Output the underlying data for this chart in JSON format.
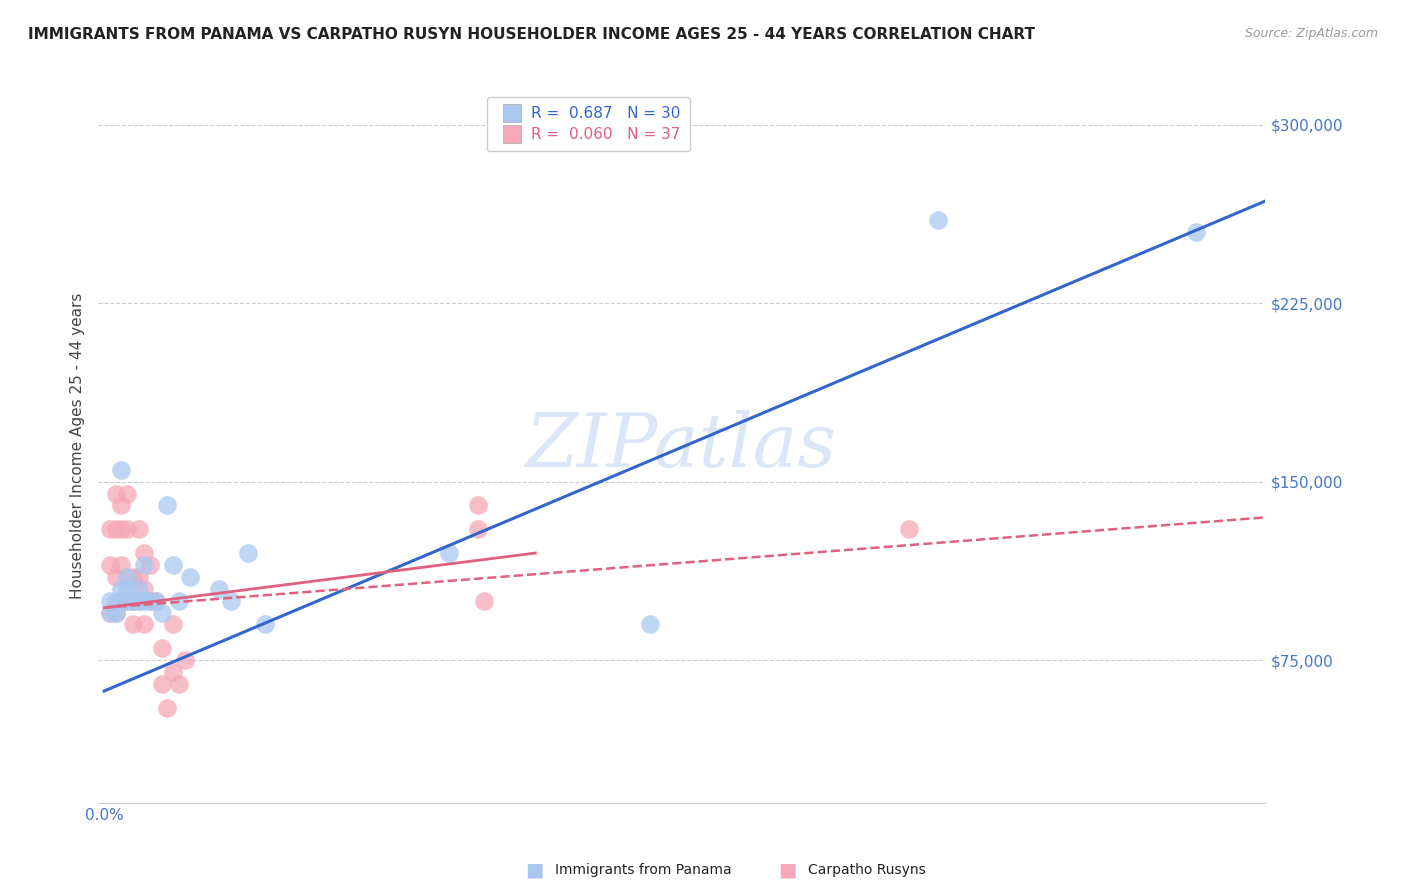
{
  "title": "IMMIGRANTS FROM PANAMA VS CARPATHO RUSYN HOUSEHOLDER INCOME AGES 25 - 44 YEARS CORRELATION CHART",
  "source": "Source: ZipAtlas.com",
  "ylabel": "Householder Income Ages 25 - 44 years",
  "xmin": -0.001,
  "xmax": 0.202,
  "ymin": 15000,
  "ymax": 315000,
  "blue_R": 0.687,
  "blue_N": 30,
  "pink_R": 0.06,
  "pink_N": 37,
  "blue_color": "#a8c8f0",
  "pink_color": "#f5a8b8",
  "blue_line_color": "#3366cc",
  "pink_line_color": "#e06080",
  "blue_scatter_x": [
    0.001,
    0.001,
    0.002,
    0.002,
    0.003,
    0.003,
    0.004,
    0.004,
    0.004,
    0.005,
    0.005,
    0.006,
    0.006,
    0.007,
    0.007,
    0.008,
    0.009,
    0.01,
    0.011,
    0.012,
    0.013,
    0.015,
    0.02,
    0.022,
    0.025,
    0.028,
    0.06,
    0.095,
    0.145,
    0.19
  ],
  "blue_scatter_y": [
    100000,
    95000,
    100000,
    95000,
    105000,
    155000,
    110000,
    105000,
    100000,
    100000,
    100000,
    105000,
    100000,
    115000,
    100000,
    100000,
    100000,
    95000,
    140000,
    115000,
    100000,
    110000,
    105000,
    100000,
    120000,
    90000,
    120000,
    90000,
    260000,
    255000
  ],
  "pink_scatter_x": [
    0.001,
    0.001,
    0.001,
    0.002,
    0.002,
    0.002,
    0.002,
    0.003,
    0.003,
    0.003,
    0.003,
    0.004,
    0.004,
    0.004,
    0.005,
    0.005,
    0.005,
    0.006,
    0.006,
    0.006,
    0.007,
    0.007,
    0.007,
    0.008,
    0.008,
    0.009,
    0.01,
    0.01,
    0.011,
    0.012,
    0.012,
    0.013,
    0.014,
    0.065,
    0.065,
    0.066,
    0.14
  ],
  "pink_scatter_y": [
    130000,
    115000,
    95000,
    145000,
    130000,
    110000,
    95000,
    140000,
    130000,
    115000,
    100000,
    145000,
    130000,
    100000,
    110000,
    100000,
    90000,
    130000,
    110000,
    100000,
    120000,
    105000,
    90000,
    115000,
    100000,
    100000,
    80000,
    65000,
    55000,
    90000,
    70000,
    65000,
    75000,
    140000,
    130000,
    100000,
    130000
  ],
  "blue_trend_x": [
    0.0,
    0.202
  ],
  "blue_trend_y": [
    62000,
    268000
  ],
  "pink_solid_trend_x": [
    0.0,
    0.075
  ],
  "pink_solid_trend_y": [
    97000,
    120000
  ],
  "pink_dashed_trend_x": [
    0.0,
    0.202
  ],
  "pink_dashed_trend_y": [
    97000,
    135000
  ],
  "watermark": "ZIPatlas",
  "ylabel_ticks": [
    75000,
    150000,
    225000,
    300000
  ],
  "ylabel_tick_labels": [
    "$75,000",
    "$150,000",
    "$225,000",
    "$300,000"
  ],
  "xlabel_ticks": [
    0.0,
    0.05,
    0.1,
    0.15,
    0.2
  ],
  "xlabel_tick_labels_shown": {
    "0.0": "0.0%"
  },
  "background_color": "#ffffff",
  "grid_color": "#cccccc",
  "title_color": "#222222",
  "tick_label_color": "#4477cc",
  "axis_label_color": "#444444"
}
